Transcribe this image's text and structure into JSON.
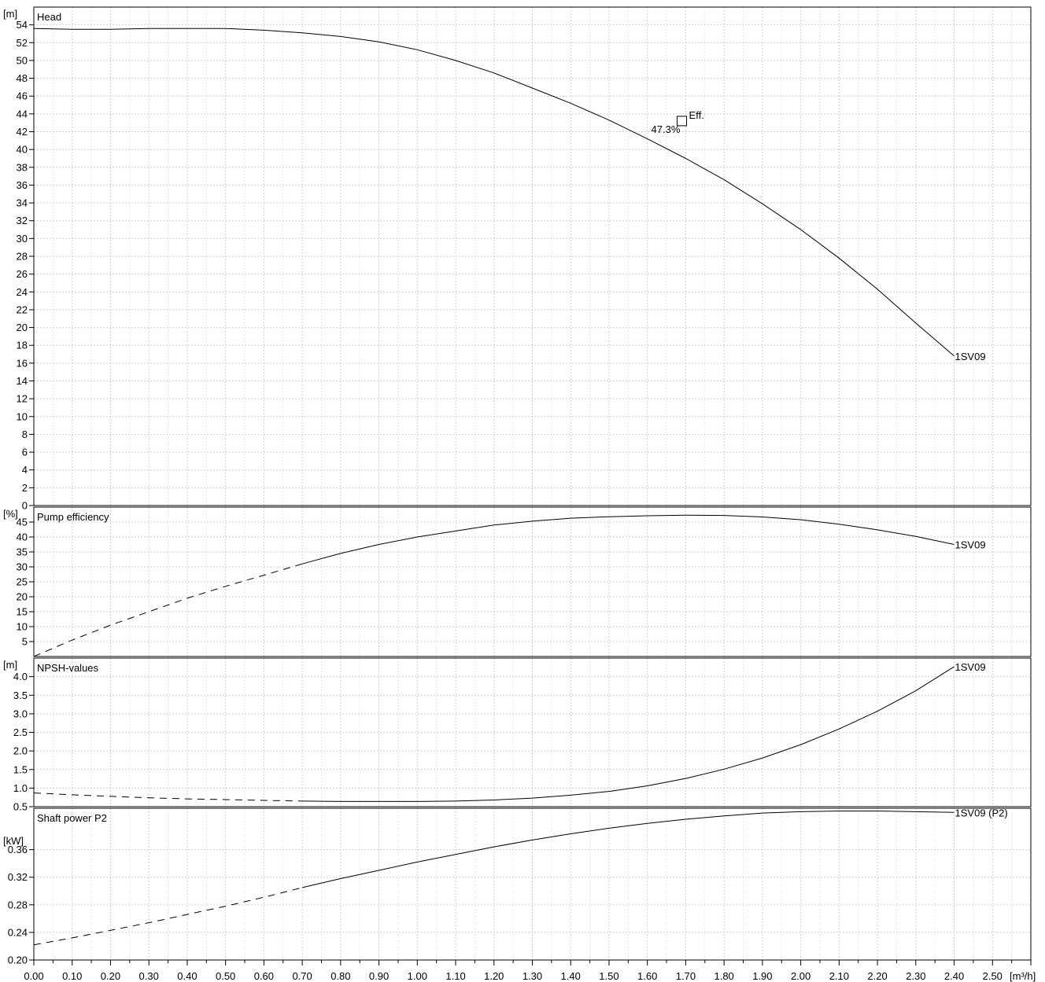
{
  "chart_data": [
    {
      "type": "line",
      "title": "Head",
      "ylabel": "[m]",
      "xlabel": "[m³/h]",
      "xlim": [
        0,
        2.6
      ],
      "ylim": [
        0,
        56
      ],
      "yticks": [
        0,
        2,
        4,
        6,
        8,
        10,
        12,
        14,
        16,
        18,
        20,
        22,
        24,
        26,
        28,
        30,
        32,
        34,
        36,
        38,
        40,
        42,
        44,
        46,
        48,
        50,
        52,
        54
      ],
      "grid": true,
      "series": [
        {
          "name": "1SV09",
          "points": [
            [
              0.0,
              53.6
            ],
            [
              0.1,
              53.5
            ],
            [
              0.2,
              53.5
            ],
            [
              0.3,
              53.6
            ],
            [
              0.4,
              53.6
            ],
            [
              0.5,
              53.6
            ],
            [
              0.6,
              53.4
            ],
            [
              0.7,
              53.1
            ],
            [
              0.8,
              52.7
            ],
            [
              0.9,
              52.1
            ],
            [
              1.0,
              51.2
            ],
            [
              1.1,
              50.0
            ],
            [
              1.2,
              48.6
            ],
            [
              1.3,
              46.9
            ],
            [
              1.4,
              45.2
            ],
            [
              1.5,
              43.3
            ],
            [
              1.6,
              41.2
            ],
            [
              1.7,
              39.0
            ],
            [
              1.8,
              36.6
            ],
            [
              1.9,
              33.9
            ],
            [
              2.0,
              31.0
            ],
            [
              2.1,
              27.8
            ],
            [
              2.2,
              24.3
            ],
            [
              2.3,
              20.5
            ],
            [
              2.4,
              16.8
            ]
          ]
        }
      ],
      "marker": {
        "label": "Eff.",
        "value_label": "47.3%",
        "x": 1.69,
        "y": 43.2
      }
    },
    {
      "type": "line",
      "title": "Pump efficiency",
      "ylabel": "[%]",
      "xlim": [
        0,
        2.6
      ],
      "ylim": [
        0,
        50
      ],
      "yticks": [
        5,
        10,
        15,
        20,
        25,
        30,
        35,
        40,
        45
      ],
      "grid": true,
      "series": [
        {
          "name": "1SV09",
          "dashed_until_x": 0.7,
          "points": [
            [
              0.0,
              0.0
            ],
            [
              0.1,
              5.5
            ],
            [
              0.2,
              10.5
            ],
            [
              0.3,
              15.0
            ],
            [
              0.4,
              19.5
            ],
            [
              0.5,
              23.5
            ],
            [
              0.6,
              27.2
            ],
            [
              0.7,
              31.0
            ],
            [
              0.8,
              34.5
            ],
            [
              0.9,
              37.5
            ],
            [
              1.0,
              40.0
            ],
            [
              1.1,
              42.0
            ],
            [
              1.2,
              44.0
            ],
            [
              1.3,
              45.3
            ],
            [
              1.4,
              46.3
            ],
            [
              1.5,
              46.8
            ],
            [
              1.6,
              47.1
            ],
            [
              1.7,
              47.3
            ],
            [
              1.8,
              47.2
            ],
            [
              1.9,
              46.7
            ],
            [
              2.0,
              45.8
            ],
            [
              2.1,
              44.3
            ],
            [
              2.2,
              42.4
            ],
            [
              2.3,
              40.2
            ],
            [
              2.4,
              37.5
            ]
          ]
        }
      ]
    },
    {
      "type": "line",
      "title": "NPSH-values",
      "ylabel": "[m]",
      "xlim": [
        0,
        2.6
      ],
      "ylim": [
        0.5,
        4.5
      ],
      "yticks": [
        0.5,
        1.0,
        1.5,
        2.0,
        2.5,
        3.0,
        3.5,
        4.0
      ],
      "grid": true,
      "series": [
        {
          "name": "1SV09",
          "dashed_until_x": 0.7,
          "points": [
            [
              0.0,
              0.87
            ],
            [
              0.1,
              0.82
            ],
            [
              0.2,
              0.78
            ],
            [
              0.3,
              0.74
            ],
            [
              0.4,
              0.71
            ],
            [
              0.5,
              0.69
            ],
            [
              0.6,
              0.67
            ],
            [
              0.7,
              0.65
            ],
            [
              0.8,
              0.64
            ],
            [
              0.9,
              0.64
            ],
            [
              1.0,
              0.64
            ],
            [
              1.1,
              0.65
            ],
            [
              1.2,
              0.68
            ],
            [
              1.3,
              0.73
            ],
            [
              1.4,
              0.81
            ],
            [
              1.5,
              0.91
            ],
            [
              1.6,
              1.06
            ],
            [
              1.7,
              1.26
            ],
            [
              1.8,
              1.51
            ],
            [
              1.9,
              1.81
            ],
            [
              2.0,
              2.17
            ],
            [
              2.1,
              2.59
            ],
            [
              2.2,
              3.07
            ],
            [
              2.3,
              3.62
            ],
            [
              2.4,
              4.27
            ]
          ]
        }
      ]
    },
    {
      "type": "line",
      "title": "Shaft power P2",
      "ylabel": "[kW]",
      "xlim": [
        0,
        2.6
      ],
      "ylim": [
        0.2,
        0.42
      ],
      "yticks": [
        0.2,
        0.24,
        0.28,
        0.32,
        0.36
      ],
      "grid": true,
      "series": [
        {
          "name": "1SV09 (P2)",
          "dashed_until_x": 0.7,
          "points": [
            [
              0.0,
              0.222
            ],
            [
              0.1,
              0.232
            ],
            [
              0.2,
              0.243
            ],
            [
              0.3,
              0.254
            ],
            [
              0.4,
              0.266
            ],
            [
              0.5,
              0.278
            ],
            [
              0.6,
              0.291
            ],
            [
              0.7,
              0.305
            ],
            [
              0.8,
              0.318
            ],
            [
              0.9,
              0.33
            ],
            [
              1.0,
              0.342
            ],
            [
              1.1,
              0.353
            ],
            [
              1.2,
              0.364
            ],
            [
              1.3,
              0.374
            ],
            [
              1.4,
              0.383
            ],
            [
              1.5,
              0.391
            ],
            [
              1.6,
              0.398
            ],
            [
              1.7,
              0.404
            ],
            [
              1.8,
              0.409
            ],
            [
              1.9,
              0.413
            ],
            [
              2.0,
              0.415
            ],
            [
              2.1,
              0.416
            ],
            [
              2.2,
              0.416
            ],
            [
              2.3,
              0.415
            ],
            [
              2.4,
              0.414
            ]
          ]
        }
      ]
    }
  ],
  "xaxis": {
    "label": "[m³/h]",
    "ticks": [
      "0.00",
      "0.10",
      "0.20",
      "0.30",
      "0.40",
      "0.50",
      "0.60",
      "0.70",
      "0.80",
      "0.90",
      "1.00",
      "1.10",
      "1.20",
      "1.30",
      "1.40",
      "1.50",
      "1.60",
      "1.70",
      "1.80",
      "1.90",
      "2.00",
      "2.10",
      "2.20",
      "2.30",
      "2.40",
      "2.50"
    ]
  }
}
